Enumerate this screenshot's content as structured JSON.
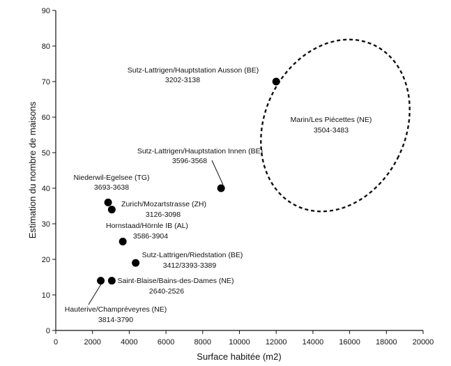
{
  "chart_data": {
    "type": "scatter",
    "xlabel": "Surface habitée (m2)",
    "ylabel": "Estimation du nombre de maisons",
    "xlim": [
      0,
      20000
    ],
    "ylim": [
      0,
      90
    ],
    "x_ticks": [
      "0",
      "2000",
      "4000",
      "6000",
      "8000",
      "10000",
      "12000",
      "14000",
      "16000",
      "18000",
      "20000"
    ],
    "y_ticks": [
      "0",
      "10",
      "20",
      "30",
      "40",
      "50",
      "60",
      "70",
      "80",
      "90"
    ],
    "grid": false,
    "points": [
      {
        "label1": "Sutz-Lattrigen/Hauptstation Ausson (BE)",
        "label2": "3202-3138",
        "x": 12000,
        "y": 70
      },
      {
        "label1": "Sutz-Lattrigen/Hauptstation Innen (BE)",
        "label2": "3596-3568",
        "x": 9000,
        "y": 40
      },
      {
        "label1": "Niederwil-Egelsee (TG)",
        "label2": "3693-3638",
        "x": 2850,
        "y": 36
      },
      {
        "label1": "Zurich/Mozartstrasse (ZH)",
        "label2": "3126-3098",
        "x": 3050,
        "y": 34
      },
      {
        "label1": "Hornstaad/Hörnle IB (AL)",
        "label2": "3586-3904",
        "x": 3650,
        "y": 25
      },
      {
        "label1": "Sutz-Lattrigen/Riedstation (BE)",
        "label2": "3412/3393-3389",
        "x": 4350,
        "y": 19
      },
      {
        "label1": "Saint-Blaise/Bains-des-Dames (NE)",
        "label2": "2640-2526",
        "x": 3050,
        "y": 14
      },
      {
        "label1": "Hauterive/Champréveyres (NE)",
        "label2": "3814-3790",
        "x": 2450,
        "y": 14
      }
    ],
    "annotation": {
      "label1": "Marin/Les Piécettes (NE)",
      "label2": "3504-3483",
      "style": "dashed ellipse"
    }
  }
}
